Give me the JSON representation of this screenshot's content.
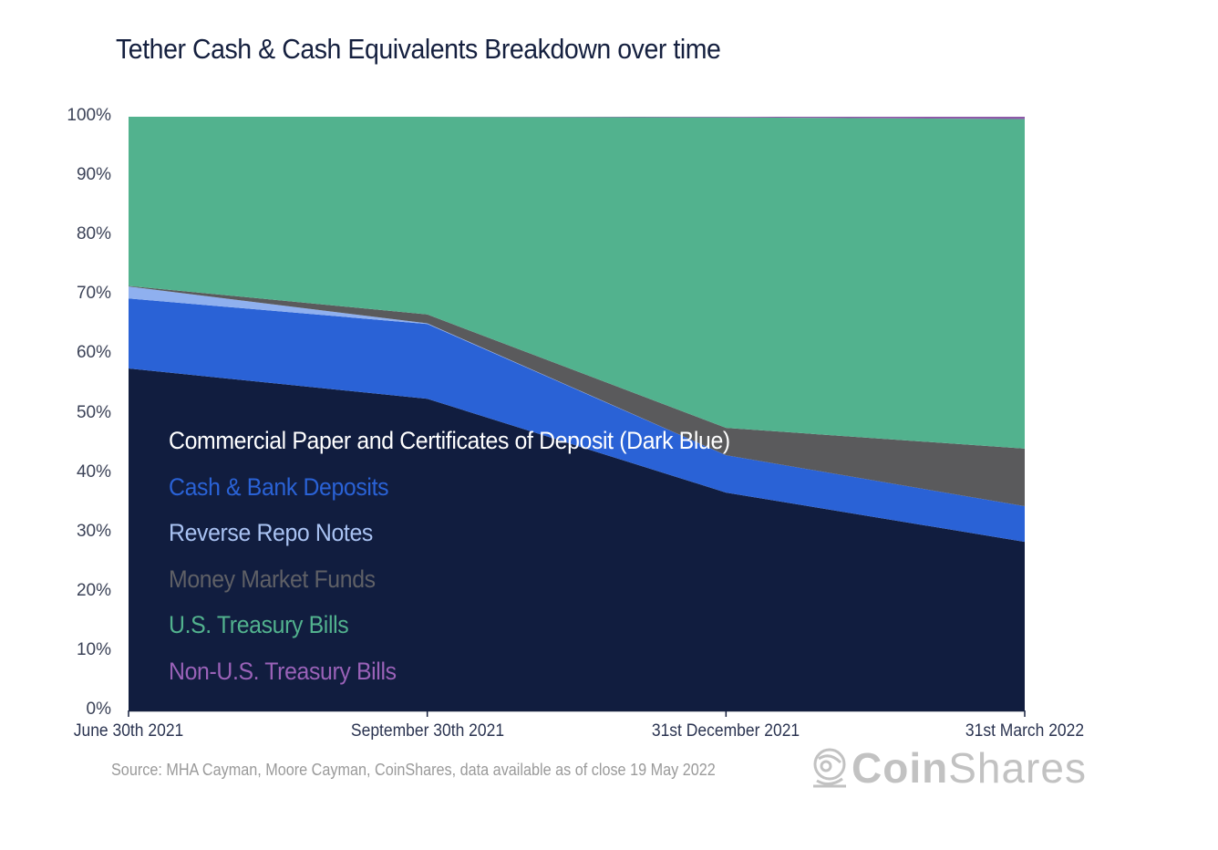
{
  "chart_data": {
    "type": "area",
    "stacked": true,
    "normalized": true,
    "title": "Tether Cash & Cash Equivalents  Breakdown over time",
    "xlabel": "",
    "ylabel": "",
    "ylim": [
      0,
      100
    ],
    "yticks": [
      "0%",
      "10%",
      "20%",
      "30%",
      "40%",
      "50%",
      "60%",
      "70%",
      "80%",
      "90%",
      "100%"
    ],
    "categories": [
      "June 30th 2021",
      "September 30th 2021",
      "31st December 2021",
      "31st March 2022"
    ],
    "grid": false,
    "legend_position": "inside-lower-left",
    "series": [
      {
        "name": "Commercial Paper and Certificates of Deposit (Dark Blue)",
        "color": "#111d3f",
        "label_color": "#ffffff",
        "values": [
          57.6,
          52.5,
          36.7,
          28.4
        ]
      },
      {
        "name": "Cash & Bank Deposits",
        "color": "#2a62d6",
        "label_color": "#2a62d6",
        "values": [
          11.8,
          12.6,
          6.3,
          6.0
        ]
      },
      {
        "name": "Reverse Repo Notes",
        "color": "#8fb0ef",
        "label_color": "#a9c2f2",
        "values": [
          2.0,
          0.1,
          0.0,
          0.0
        ]
      },
      {
        "name": "Money Market Funds",
        "color": "#5a5a5c",
        "label_color": "#5f6066",
        "values": [
          0.1,
          1.5,
          4.6,
          9.7
        ]
      },
      {
        "name": "U.S. Treasury Bills",
        "color": "#52b28e",
        "label_color": "#52b28e",
        "values": [
          28.5,
          33.3,
          52.3,
          55.5
        ]
      },
      {
        "name": "Non-U.S. Treasury Bills",
        "color": "#8d5ba8",
        "label_color": "#9a62b8",
        "values": [
          0.0,
          0.0,
          0.1,
          0.4
        ]
      }
    ]
  },
  "footer": {
    "source": "Source: MHA Cayman, Moore Cayman, CoinShares, data available as of close 19 May 2022",
    "brand_bold": "Coin",
    "brand_light": "Shares"
  }
}
